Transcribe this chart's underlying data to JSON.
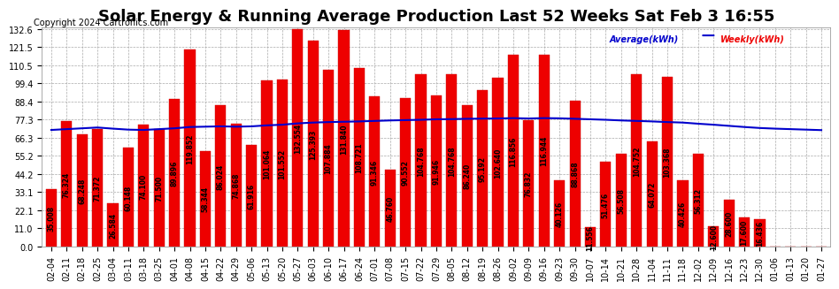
{
  "title": "Solar Energy & Running Average Production Last 52 Weeks Sat Feb 3 16:55",
  "copyright": "Copyright 2024 Cartronics.com",
  "ylabel_right": "",
  "legend_avg": "Average(kWh)",
  "legend_weekly": "Weekly(kWh)",
  "categories": [
    "02-04",
    "02-11",
    "02-18",
    "02-25",
    "03-04",
    "03-11",
    "03-18",
    "03-25",
    "04-01",
    "04-08",
    "04-15",
    "04-22",
    "04-29",
    "05-06",
    "05-13",
    "05-20",
    "05-27",
    "06-03",
    "06-10",
    "06-17",
    "06-24",
    "07-01",
    "07-08",
    "07-15",
    "07-22",
    "07-29",
    "08-05",
    "08-12",
    "08-19",
    "08-26",
    "09-02",
    "09-09",
    "09-16",
    "09-23",
    "09-30",
    "10-07",
    "10-14",
    "10-21",
    "10-28",
    "11-04",
    "11-11",
    "11-18",
    "12-02",
    "12-09",
    "12-16",
    "12-23",
    "12-30",
    "01-06",
    "01-13",
    "01-20",
    "01-27"
  ],
  "weekly_values": [
    35.008,
    76.324,
    68.248,
    71.372,
    26.584,
    60.148,
    74.1,
    71.5,
    89.896,
    119.852,
    58.344,
    86.024,
    74.868,
    61.916,
    101.064,
    101.552,
    132.554,
    125.393,
    107.884,
    131.84,
    108.721,
    91.346,
    46.76,
    90.552,
    104.768,
    91.946,
    104.768,
    86.24,
    95.192,
    102.64,
    116.856,
    76.832,
    116.944,
    40.126,
    88.868,
    11.556,
    51.476,
    56.508,
    104.752,
    64.072,
    103.368,
    40.426,
    56.312,
    12.6,
    28.6,
    17.6,
    16.436,
    0.0,
    0.0,
    0.148,
    0.0
  ],
  "running_avg": [
    71.0,
    71.5,
    72.0,
    72.5,
    71.8,
    71.2,
    71.0,
    71.5,
    72.0,
    72.8,
    73.0,
    73.2,
    73.0,
    73.2,
    73.8,
    74.2,
    75.0,
    75.5,
    75.8,
    76.0,
    76.2,
    76.5,
    76.8,
    77.0,
    77.2,
    77.5,
    77.6,
    77.8,
    77.9,
    78.0,
    78.2,
    78.0,
    78.2,
    78.1,
    77.8,
    77.5,
    77.2,
    76.8,
    76.5,
    76.2,
    75.8,
    75.5,
    74.8,
    74.2,
    73.5,
    72.8,
    72.2,
    71.8,
    71.5,
    71.2,
    70.9
  ],
  "bar_color": "#ee0000",
  "bar_edgecolor": "#cc0000",
  "avg_line_color": "#0000cc",
  "yticks": [
    0.0,
    11.0,
    22.1,
    33.1,
    44.2,
    55.2,
    66.3,
    77.3,
    88.4,
    99.4,
    110.5,
    121.5,
    132.6
  ],
  "background_color": "#ffffff",
  "plot_bg_color": "#ffffff",
  "grid_color": "#aaaaaa",
  "title_fontsize": 13,
  "bar_text_fontsize": 5.5,
  "tick_fontsize": 7,
  "copyright_fontsize": 7
}
